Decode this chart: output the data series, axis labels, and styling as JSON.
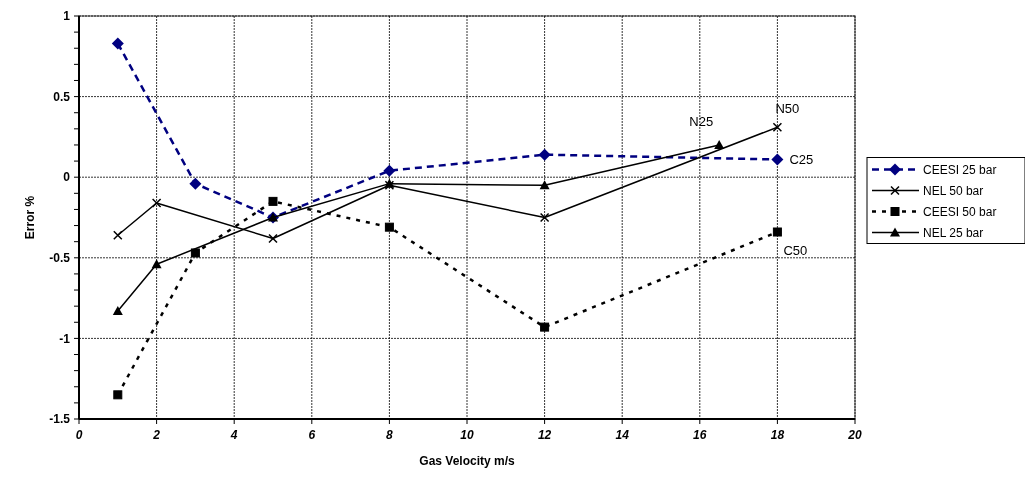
{
  "chart_data": {
    "type": "line",
    "xlabel": "Gas Velocity m/s",
    "ylabel": "Error %",
    "xlim": [
      0,
      20
    ],
    "xticks": [
      0,
      2,
      4,
      6,
      8,
      10,
      12,
      14,
      16,
      18,
      20
    ],
    "ylim": [
      -1.5,
      1
    ],
    "yticks": [
      -1.5,
      {
        "value": -1.4,
        "label": null
      },
      {
        "value": -1.3,
        "label": null
      },
      {
        "value": -1.2,
        "label": null
      },
      {
        "value": -1.1,
        "label": null
      },
      -1,
      {
        "value": -0.9,
        "label": null
      },
      {
        "value": -0.8,
        "label": null
      },
      {
        "value": -0.7,
        "label": null
      },
      {
        "value": -0.6,
        "label": null
      },
      -0.5,
      {
        "value": -0.4,
        "label": null
      },
      {
        "value": -0.3,
        "label": null
      },
      {
        "value": -0.2,
        "label": null
      },
      {
        "value": -0.1,
        "label": null
      },
      0,
      {
        "value": 0.1,
        "label": null
      },
      {
        "value": 0.2,
        "label": null
      },
      {
        "value": 0.3,
        "label": null
      },
      {
        "value": 0.4,
        "label": null
      },
      0.5,
      {
        "value": 0.6,
        "label": null
      },
      {
        "value": 0.7,
        "label": null
      },
      {
        "value": 0.8,
        "label": null
      },
      {
        "value": 0.9,
        "label": null
      },
      1
    ],
    "grid": true,
    "legend": "right",
    "series": [
      {
        "name": "CEESI 25 bar",
        "color": "#000080",
        "marker": "diamond",
        "line_style": "dashed",
        "x": [
          1,
          3,
          5,
          8,
          12,
          18
        ],
        "values": [
          0.83,
          -0.04,
          -0.25,
          0.04,
          0.14,
          0.11
        ]
      },
      {
        "name": "NEL 50 bar",
        "color": "#000000",
        "marker": "cross",
        "line_style": "solid",
        "x": [
          1,
          2,
          5,
          8,
          12,
          18
        ],
        "values": [
          -0.36,
          -0.16,
          -0.38,
          -0.05,
          -0.25,
          0.31
        ]
      },
      {
        "name": "CEESI 50 bar",
        "color": "#000000",
        "marker": "square",
        "line_style": "dotted",
        "x": [
          1,
          3,
          5,
          8,
          12,
          18
        ],
        "values": [
          -1.35,
          -0.47,
          -0.15,
          -0.31,
          -0.93,
          -0.34
        ]
      },
      {
        "name": "NEL 25 bar",
        "color": "#000000",
        "marker": "triangle",
        "line_style": "solid",
        "x": [
          1,
          2,
          5,
          8,
          12,
          16.5
        ],
        "values": [
          -0.83,
          -0.54,
          -0.25,
          -0.04,
          -0.05,
          0.2
        ]
      }
    ],
    "annotations": [
      "N25",
      "N50",
      "C25",
      "C50"
    ]
  }
}
